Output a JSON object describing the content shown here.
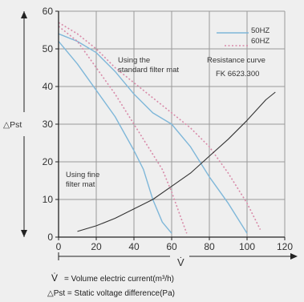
{
  "chart_data": {
    "type": "line",
    "xlabel": "V̇",
    "ylabel": "△Pst",
    "xlim": [
      0,
      120
    ],
    "ylim": [
      0,
      60
    ],
    "x_ticks": [
      "0",
      "20",
      "40",
      "60",
      "80",
      "100",
      "120"
    ],
    "y_ticks": [
      "0",
      "10",
      "20",
      "30",
      "40",
      "50",
      "60"
    ],
    "grid": true,
    "legend": {
      "position": "top-right",
      "entries": [
        {
          "label": "50HZ",
          "style": "solid"
        },
        {
          "label": "60HZ",
          "style": "dotted"
        }
      ]
    },
    "annotations": [
      {
        "id": "standard-filter",
        "lines": [
          "Using the",
          "standard filter mat"
        ]
      },
      {
        "id": "resistance",
        "lines": [
          "Resistance curve",
          "FK 6623.300"
        ]
      },
      {
        "id": "fine-filter",
        "lines": [
          "Using fine",
          "filter mat"
        ]
      }
    ],
    "series": [
      {
        "id": "standard-50hz",
        "frequency": "50HZ",
        "filter": "standard",
        "points": [
          [
            0,
            54
          ],
          [
            10,
            52
          ],
          [
            20,
            49
          ],
          [
            30,
            44
          ],
          [
            40,
            38
          ],
          [
            50,
            33
          ],
          [
            60,
            30
          ],
          [
            70,
            24
          ],
          [
            80,
            16
          ],
          [
            90,
            9
          ],
          [
            100,
            1
          ]
        ]
      },
      {
        "id": "standard-60hz",
        "frequency": "60HZ",
        "filter": "standard",
        "points": [
          [
            0,
            57
          ],
          [
            10,
            54
          ],
          [
            20,
            50
          ],
          [
            30,
            45
          ],
          [
            40,
            41
          ],
          [
            50,
            37
          ],
          [
            60,
            33
          ],
          [
            70,
            29
          ],
          [
            80,
            24
          ],
          [
            90,
            17
          ],
          [
            100,
            9
          ],
          [
            107,
            2
          ]
        ]
      },
      {
        "id": "fine-50hz",
        "frequency": "50HZ",
        "filter": "fine",
        "points": [
          [
            0,
            52
          ],
          [
            10,
            46
          ],
          [
            20,
            39
          ],
          [
            30,
            32
          ],
          [
            40,
            23
          ],
          [
            45,
            18
          ],
          [
            50,
            10
          ],
          [
            55,
            4
          ],
          [
            60,
            1
          ]
        ]
      },
      {
        "id": "fine-60hz",
        "frequency": "60HZ",
        "filter": "fine",
        "points": [
          [
            0,
            56
          ],
          [
            10,
            52
          ],
          [
            20,
            45
          ],
          [
            30,
            38
          ],
          [
            40,
            30
          ],
          [
            50,
            22
          ],
          [
            55,
            18
          ],
          [
            60,
            12
          ],
          [
            65,
            5
          ],
          [
            68,
            1
          ]
        ]
      },
      {
        "id": "resistance-curve",
        "frequency": "",
        "filter": "resistance",
        "points": [
          [
            10,
            1.5
          ],
          [
            20,
            3
          ],
          [
            30,
            5
          ],
          [
            40,
            7.5
          ],
          [
            50,
            10
          ],
          [
            60,
            13.5
          ],
          [
            70,
            17
          ],
          [
            80,
            21.5
          ],
          [
            90,
            26
          ],
          [
            100,
            31
          ],
          [
            110,
            36.5
          ],
          [
            115,
            38.5
          ]
        ]
      }
    ]
  },
  "colors": {
    "background": "#efefef",
    "grid": "#9a9a9a",
    "axis": "#222222",
    "curve_50hz": "#7fb7d9",
    "curve_60hz": "#d88aa8",
    "resistance": "#333333"
  },
  "footnote": {
    "line1_symbol": "V̇",
    "line1_text": "= Volume electric current(m³/h)",
    "line2": "△Pst = Static voltage difference(Pa)"
  }
}
